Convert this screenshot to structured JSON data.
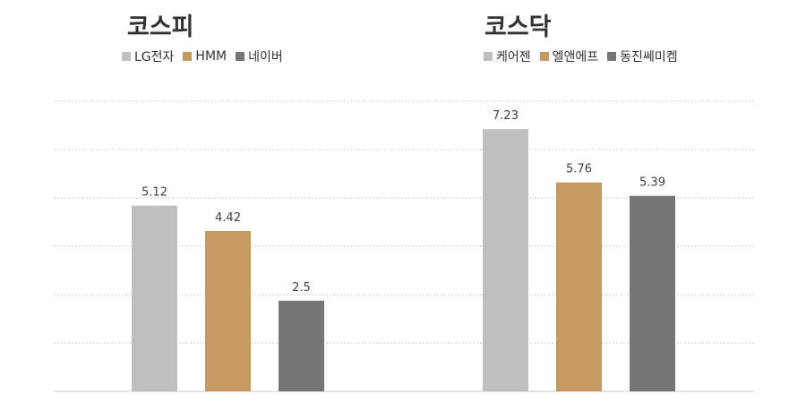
{
  "chart_data": {
    "type": "bar",
    "ylim": [
      0,
      8
    ],
    "grid": true,
    "panels": [
      {
        "title": "코스피",
        "categories": [
          "LG전자",
          "HMM",
          "네이버"
        ],
        "values": [
          5.12,
          4.42,
          2.5
        ],
        "labels": [
          "5.12",
          "4.42",
          "2.5"
        ]
      },
      {
        "title": "코스닥",
        "categories": [
          "케어젠",
          "엘앤에프",
          "동진쎄미켐"
        ],
        "values": [
          7.23,
          5.76,
          5.39
        ],
        "labels": [
          "7.23",
          "5.76",
          "5.39"
        ]
      }
    ],
    "colors": [
      "#bfbfbf",
      "#c49a62",
      "#767676"
    ]
  }
}
